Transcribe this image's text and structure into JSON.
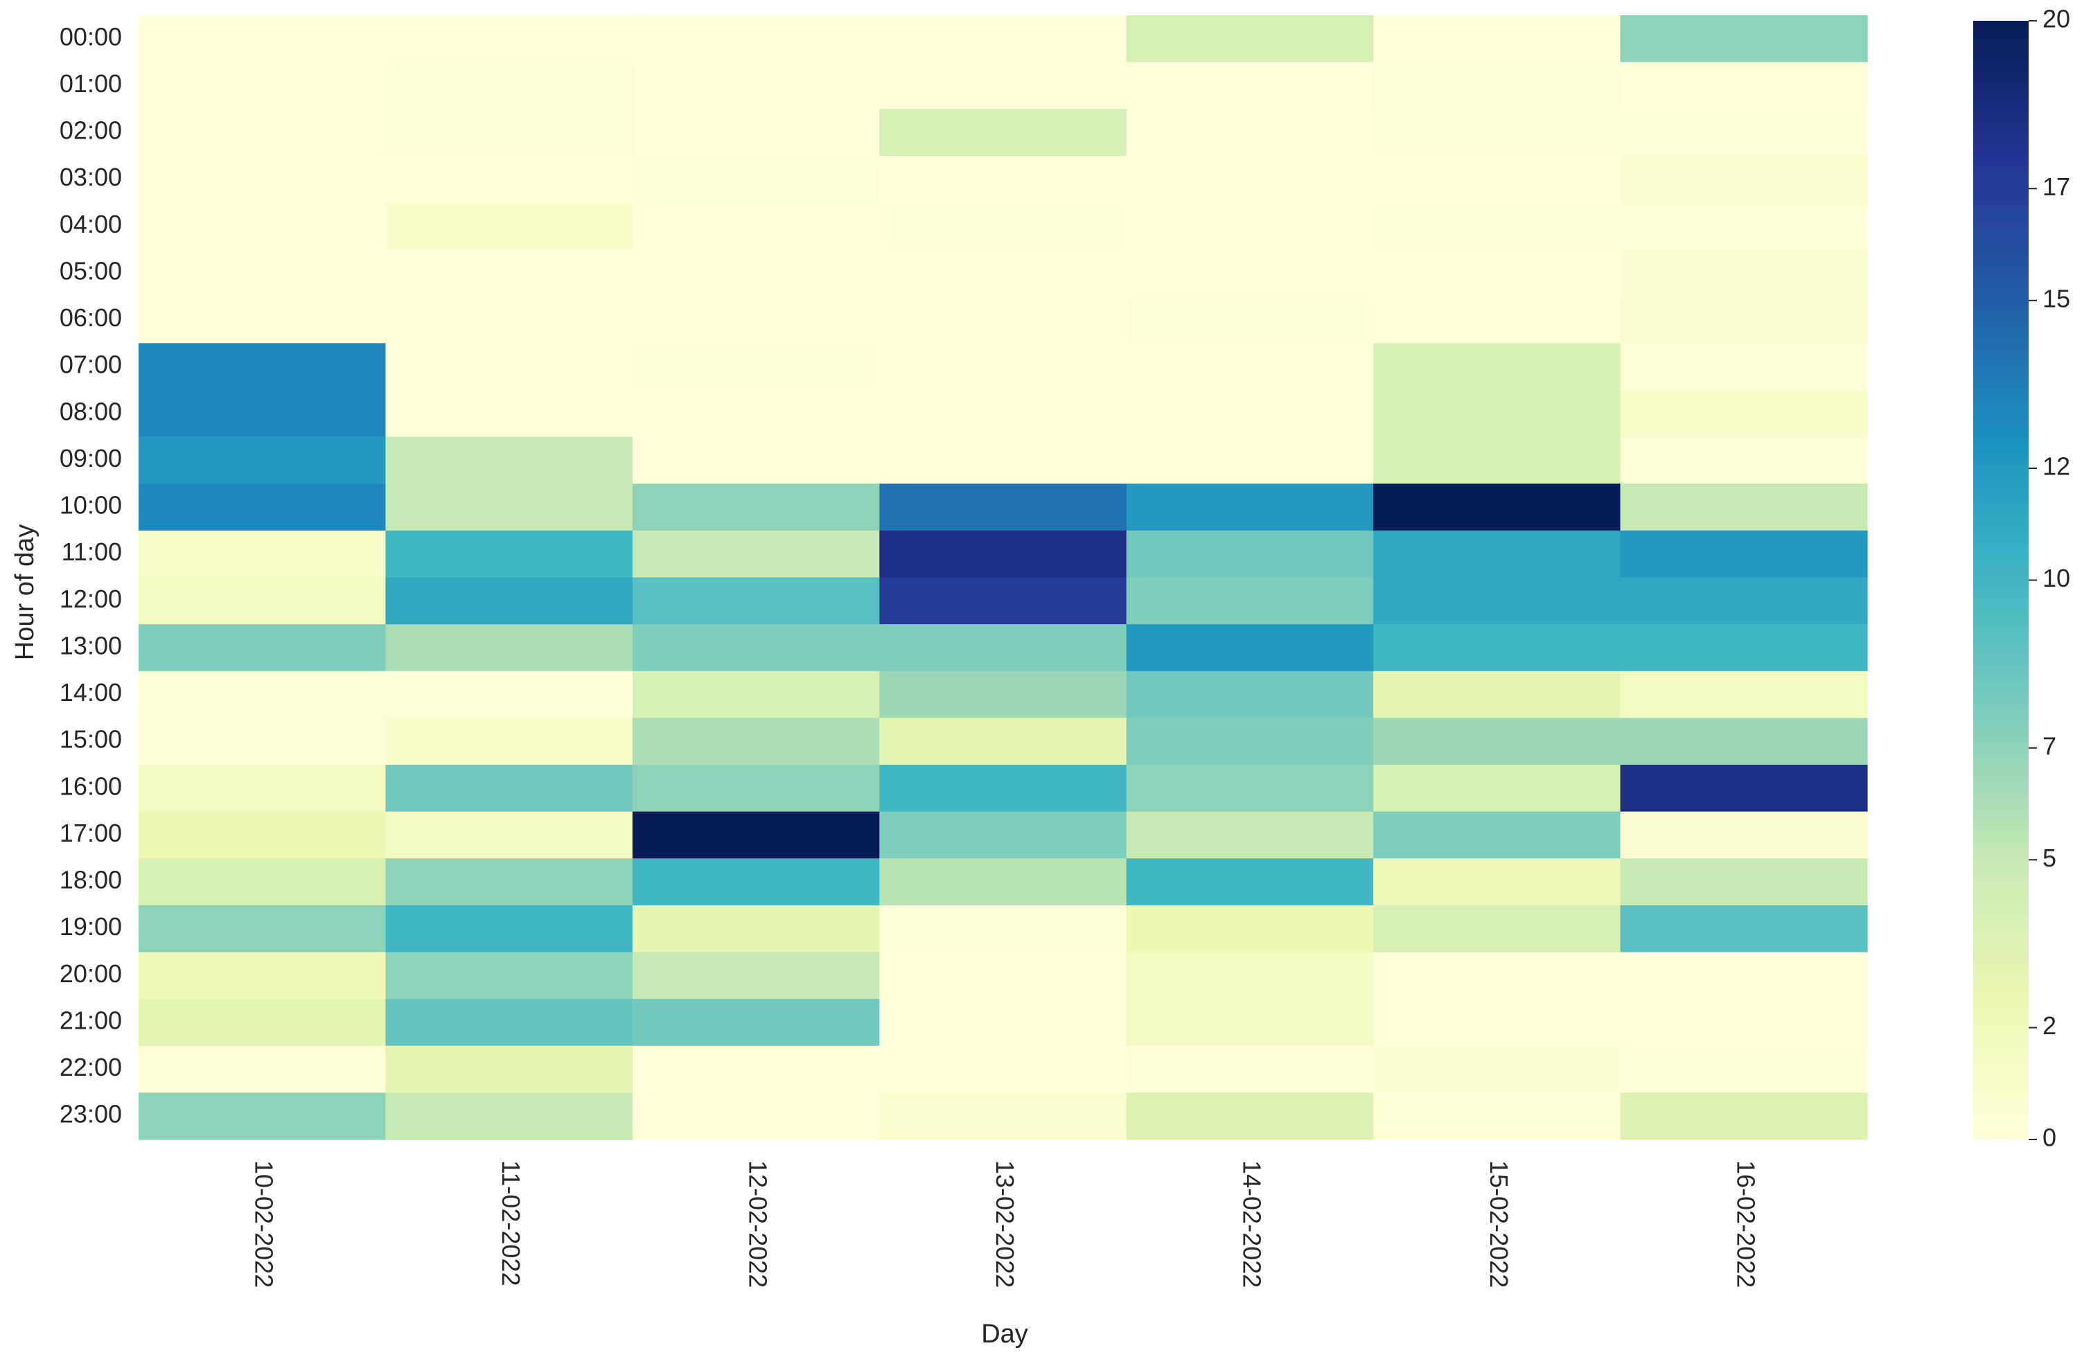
{
  "chart_data": {
    "type": "heatmap",
    "title": "",
    "xlabel": "Day",
    "ylabel": "Hour of day",
    "x_categories": [
      "10-02-2022",
      "11-02-2022",
      "12-02-2022",
      "13-02-2022",
      "14-02-2022",
      "15-02-2022",
      "16-02-2022"
    ],
    "y_categories": [
      "00:00",
      "01:00",
      "02:00",
      "03:00",
      "04:00",
      "05:00",
      "06:00",
      "07:00",
      "08:00",
      "09:00",
      "10:00",
      "11:00",
      "12:00",
      "13:00",
      "14:00",
      "15:00",
      "16:00",
      "17:00",
      "18:00",
      "19:00",
      "20:00",
      "21:00",
      "22:00",
      "23:00"
    ],
    "values": [
      [
        0,
        0,
        0,
        0,
        4,
        0,
        7
      ],
      [
        0,
        0.3,
        0,
        0,
        0,
        0.2,
        0
      ],
      [
        0,
        0.3,
        0,
        4,
        0,
        0.1,
        0.1
      ],
      [
        0,
        0,
        0.3,
        0,
        0,
        0,
        0.6
      ],
      [
        0,
        1,
        0,
        0.1,
        0,
        0.1,
        0.2
      ],
      [
        0,
        0,
        0,
        0,
        0,
        0,
        0.5
      ],
      [
        0,
        0,
        0,
        0,
        0.4,
        0,
        0.6
      ],
      [
        13,
        0,
        0.1,
        0,
        0,
        4,
        0.2
      ],
      [
        13,
        0,
        0,
        0,
        0,
        4,
        1
      ],
      [
        12,
        5,
        0,
        0,
        0,
        4,
        0.2
      ],
      [
        13,
        5,
        7,
        14,
        12,
        20,
        5
      ],
      [
        1,
        10,
        5,
        18,
        8,
        11,
        12
      ],
      [
        1.5,
        11,
        9,
        17,
        7.5,
        11,
        11
      ],
      [
        7.5,
        6,
        7.5,
        7.5,
        12,
        10,
        10
      ],
      [
        0.3,
        0.3,
        4,
        6.5,
        8,
        3,
        1.5
      ],
      [
        0.2,
        1,
        6,
        3,
        7.5,
        6.5,
        6.5
      ],
      [
        1.5,
        8,
        7,
        10,
        7,
        4,
        18
      ],
      [
        2.5,
        1.5,
        20,
        7.5,
        5,
        7.5,
        0.6
      ],
      [
        4,
        7,
        10,
        5.5,
        10,
        2,
        5
      ],
      [
        7,
        10,
        3,
        0.1,
        2.5,
        4,
        9
      ],
      [
        2,
        7,
        5,
        0,
        1.5,
        0,
        0
      ],
      [
        3,
        8.5,
        8,
        0,
        1.5,
        0,
        0
      ],
      [
        0.3,
        3,
        0,
        0,
        0.2,
        0.5,
        0.2
      ],
      [
        7,
        5,
        0,
        0.6,
        3.5,
        0.1,
        3.5
      ]
    ],
    "colorbar": {
      "colormap": "YlGnBu",
      "range": [
        0,
        20
      ],
      "ticks": [
        0,
        2,
        5,
        7,
        10,
        12,
        15,
        17,
        20
      ],
      "tick_labels": [
        "0",
        "2",
        "5",
        "7",
        "10",
        "12",
        "15",
        "17",
        "20"
      ]
    },
    "colormap_stops": [
      "#ffffd9",
      "#edf8b1",
      "#c7e9b4",
      "#7fcdbb",
      "#41b6c4",
      "#1d91c0",
      "#225ea8",
      "#253494",
      "#081d58"
    ]
  }
}
